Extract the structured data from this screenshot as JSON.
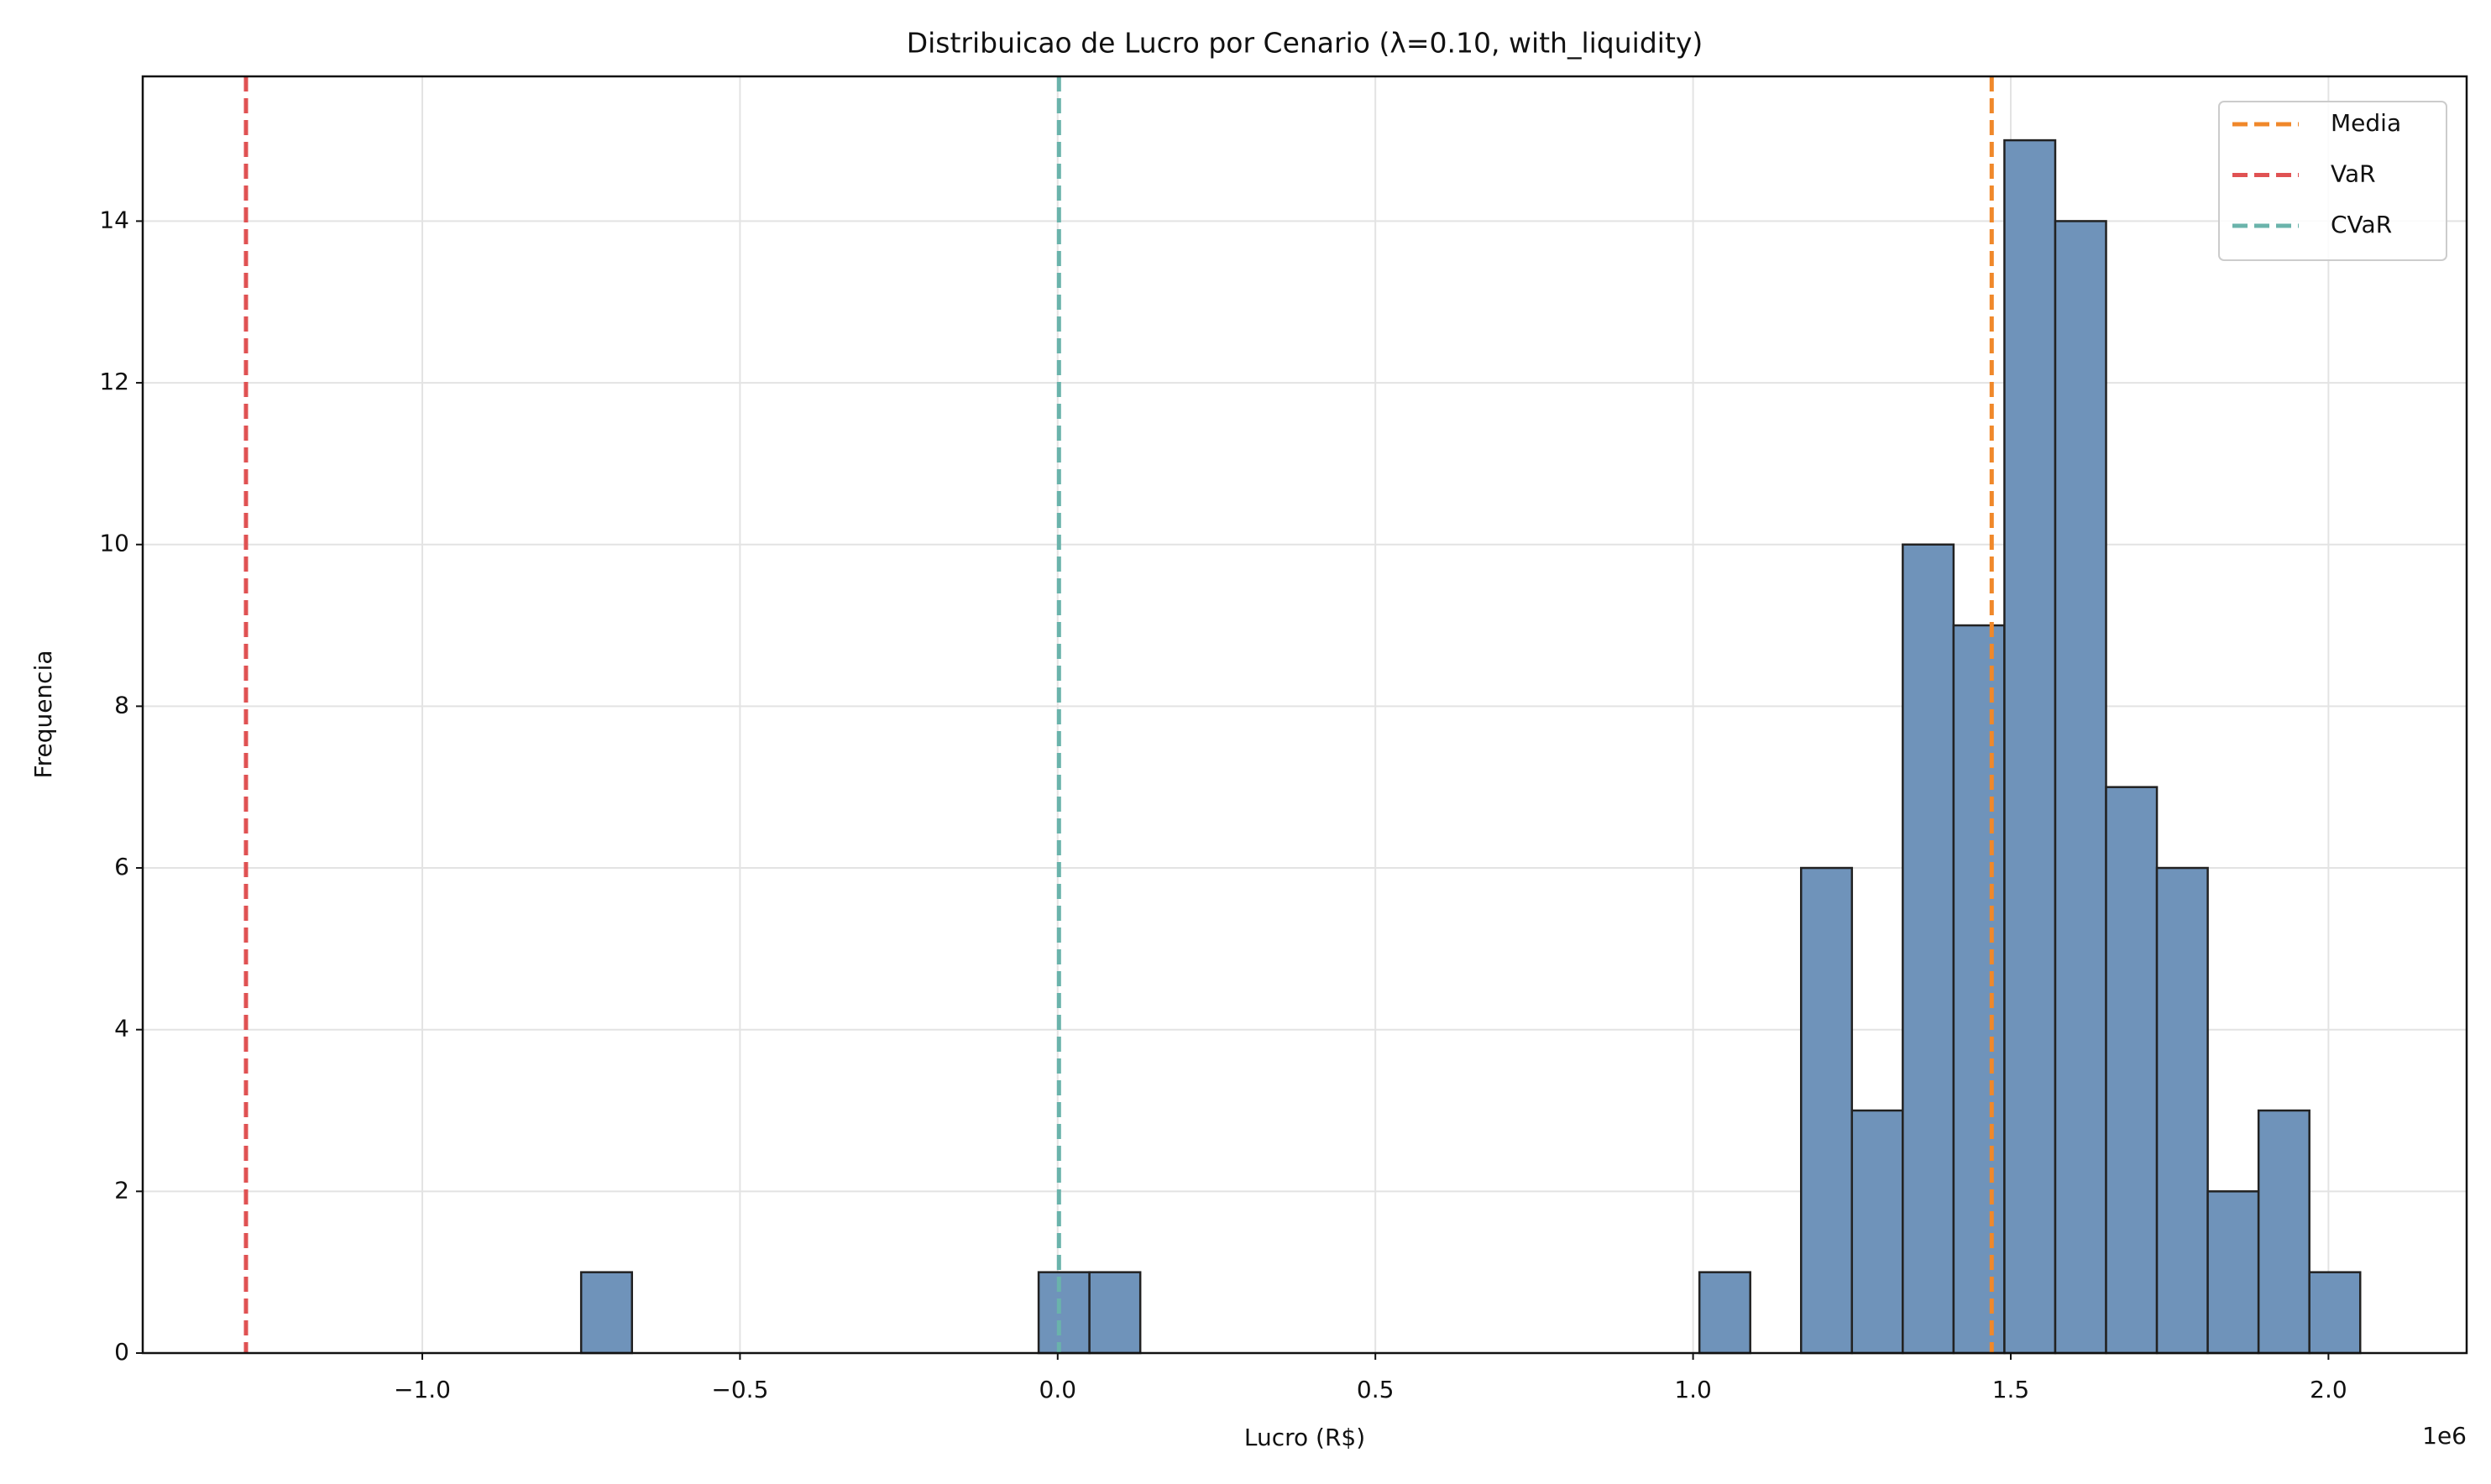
{
  "chart_data": {
    "type": "histogram",
    "title": "Distribuicao de Lucro por Cenario (λ=0.10, with_liquidity)",
    "x_label": "Lucro (R$)",
    "y_label": "Frequencia",
    "x_offset_label": "1e6",
    "bins": [
      -750000,
      -670000,
      -590000,
      -510000,
      -430000,
      -350000,
      -270000,
      -190000,
      -110000,
      -30000,
      50000,
      130000,
      210000,
      290000,
      370000,
      450000,
      530000,
      610000,
      690000,
      770000,
      850000,
      930000,
      1010000,
      1090000,
      1170000,
      1250000,
      1330000,
      1410000,
      1490000,
      1570000,
      1650000,
      1730000,
      1810000,
      1890000,
      1970000,
      2050000
    ],
    "values": [
      1,
      0,
      0,
      0,
      0,
      0,
      0,
      0,
      0,
      1,
      1,
      0,
      0,
      0,
      0,
      0,
      0,
      0,
      0,
      0,
      0,
      0,
      1,
      0,
      6,
      3,
      10,
      9,
      15,
      14,
      7,
      6,
      2,
      3,
      1
    ],
    "color": "#6f93ba",
    "edgecolor": "#222222",
    "vlines": [
      {
        "name": "Media",
        "value": 1470000,
        "color": "#f0882a"
      },
      {
        "name": "VaR",
        "value": -1277500,
        "color": "#e05253"
      },
      {
        "name": "CVaR",
        "value": 2000,
        "color": "#6ab3ab"
      }
    ],
    "xlim": [
      -1440000,
      2217500
    ],
    "ylim": [
      0,
      15.79
    ],
    "xticks": [
      {
        "value": -1000000,
        "label": "−1.0"
      },
      {
        "value": -500000,
        "label": "−0.5"
      },
      {
        "value": 0,
        "label": "0.0"
      },
      {
        "value": 500000,
        "label": "0.5"
      },
      {
        "value": 1000000,
        "label": "1.0"
      },
      {
        "value": 1500000,
        "label": "1.5"
      },
      {
        "value": 2000000,
        "label": "2.0"
      }
    ],
    "yticks": [
      0,
      2,
      4,
      6,
      8,
      10,
      12,
      14
    ],
    "grid": true,
    "legend": "upper right"
  }
}
